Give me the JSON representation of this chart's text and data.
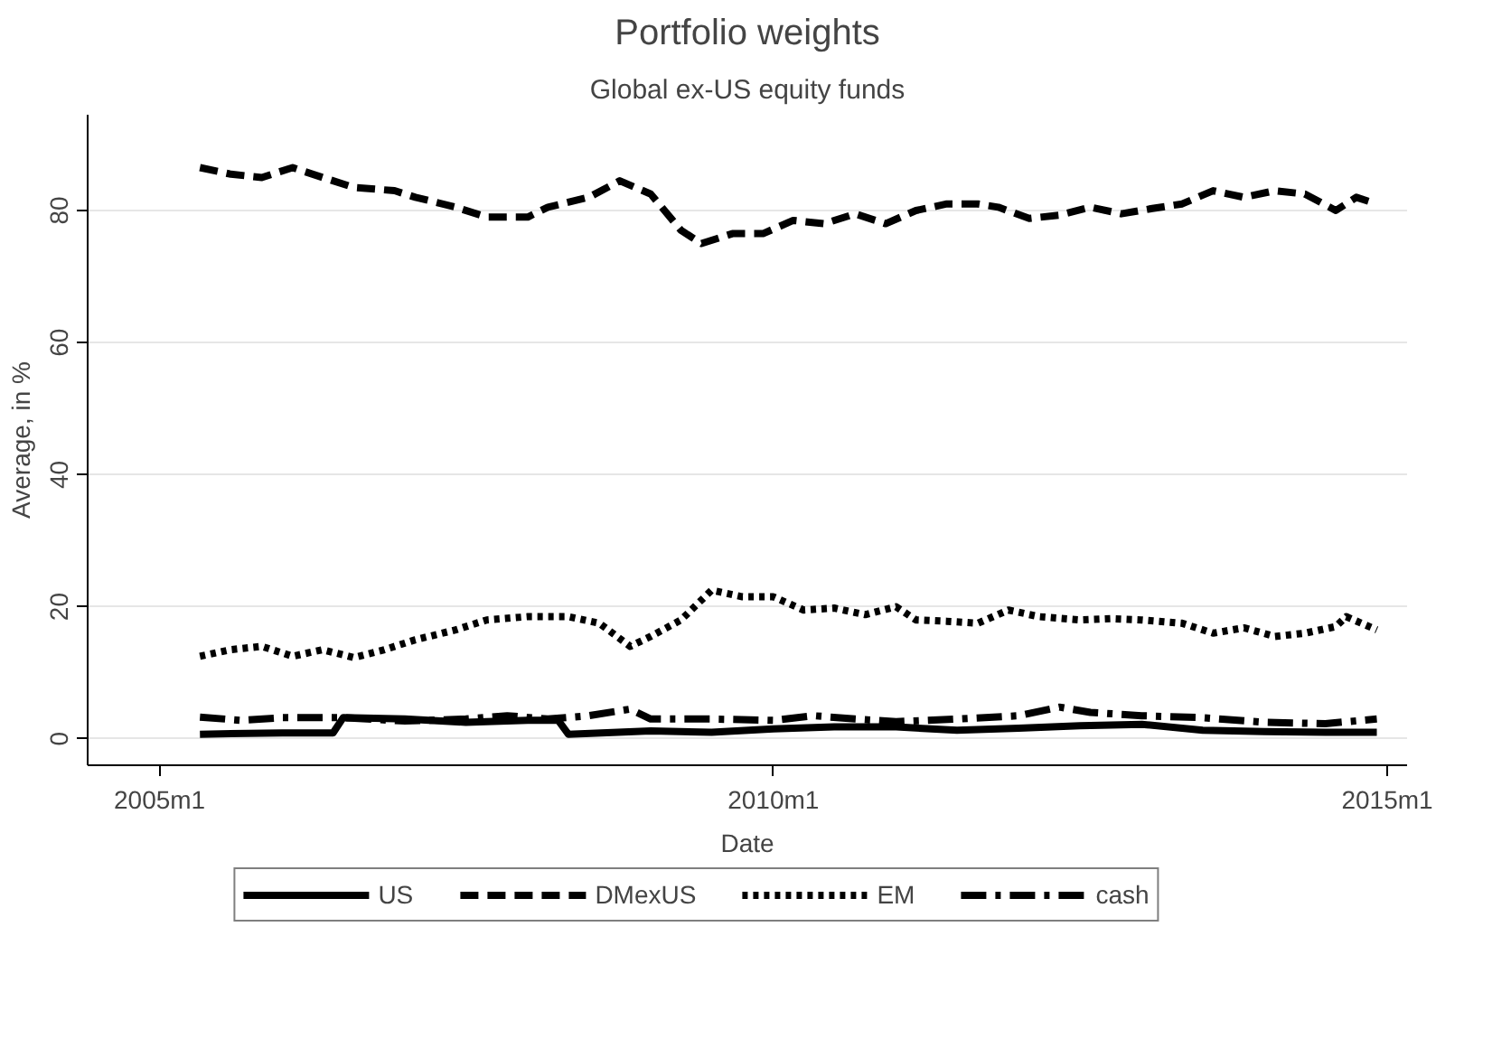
{
  "chart_data": {
    "type": "line",
    "title": "Portfolio weights",
    "subtitle": "Global ex-US equity funds",
    "xlabel": "Date",
    "ylabel": "Average, in %",
    "xlim": [
      "2004-06",
      "2015-03"
    ],
    "xticks": [
      {
        "value": "2005-01",
        "label": "2005m1"
      },
      {
        "value": "2010-01",
        "label": "2010m1"
      },
      {
        "value": "2015-01",
        "label": "2015m1"
      }
    ],
    "ylim": [
      -4,
      94.5
    ],
    "yticks": [
      0,
      20,
      40,
      60,
      80
    ],
    "grid": "y",
    "legend": "bottom",
    "marker": "none",
    "series": [
      {
        "name": "US",
        "color": "#000000",
        "line_style": "solid",
        "x": [
          "2005-05",
          "2006-01",
          "2006-06",
          "2006-07",
          "2007-01",
          "2007-07",
          "2008-01",
          "2008-04",
          "2008-05",
          "2009-01",
          "2009-07",
          "2010-01",
          "2010-07",
          "2011-01",
          "2011-07",
          "2012-01",
          "2012-07",
          "2013-01",
          "2013-07",
          "2014-01",
          "2014-07",
          "2014-12"
        ],
        "values": [
          0.7,
          0.9,
          0.9,
          3.2,
          3.0,
          2.5,
          2.8,
          2.8,
          0.7,
          1.2,
          1.0,
          1.5,
          1.8,
          1.8,
          1.3,
          1.6,
          2.0,
          2.2,
          1.3,
          1.1,
          1.0,
          1.0
        ]
      },
      {
        "name": "DMexUS",
        "color": "#000000",
        "line_style": "dashed",
        "x": [
          "2005-05",
          "2005-08",
          "2005-11",
          "2006-02",
          "2006-05",
          "2006-08",
          "2006-12",
          "2007-02",
          "2007-06",
          "2007-09",
          "2008-01",
          "2008-03",
          "2008-07",
          "2008-10",
          "2009-01",
          "2009-04",
          "2009-06",
          "2009-09",
          "2009-12",
          "2010-03",
          "2010-06",
          "2010-09",
          "2010-12",
          "2011-03",
          "2011-06",
          "2011-09",
          "2011-11",
          "2012-02",
          "2012-05",
          "2012-08",
          "2012-11",
          "2013-02",
          "2013-05",
          "2013-08",
          "2013-11",
          "2014-02",
          "2014-05",
          "2014-08",
          "2014-10",
          "2014-12"
        ],
        "values": [
          86.5,
          85.5,
          85,
          86.5,
          85,
          83.5,
          83,
          82,
          80.5,
          79,
          79,
          80.5,
          82,
          84.5,
          82.5,
          77,
          75,
          76.5,
          76.5,
          78.5,
          78,
          79.5,
          78,
          80,
          81,
          81,
          80.5,
          78.8,
          79.3,
          80.5,
          79.5,
          80.3,
          81,
          83,
          82,
          83,
          82.5,
          80,
          82,
          81
        ]
      },
      {
        "name": "EM",
        "color": "#000000",
        "line_style": "dotted",
        "x": [
          "2005-05",
          "2005-08",
          "2005-11",
          "2006-02",
          "2006-05",
          "2006-08",
          "2006-11",
          "2007-02",
          "2007-06",
          "2007-09",
          "2008-01",
          "2008-05",
          "2008-08",
          "2008-11",
          "2009-01",
          "2009-04",
          "2009-07",
          "2009-10",
          "2010-01",
          "2010-04",
          "2010-07",
          "2010-10",
          "2011-01",
          "2011-03",
          "2011-06",
          "2011-09",
          "2011-12",
          "2012-03",
          "2012-07",
          "2012-10",
          "2013-01",
          "2013-05",
          "2013-08",
          "2013-11",
          "2014-02",
          "2014-05",
          "2014-08",
          "2014-09",
          "2014-12"
        ],
        "values": [
          12.5,
          13.5,
          14,
          12.5,
          13.5,
          12.3,
          13.5,
          15,
          16.5,
          18,
          18.5,
          18.5,
          17.5,
          14,
          15.5,
          18,
          22.5,
          21.5,
          21.5,
          19.5,
          19.8,
          18.8,
          20,
          18,
          17.8,
          17.5,
          19.5,
          18.5,
          18,
          18.2,
          18,
          17.5,
          16,
          16.8,
          15.5,
          16,
          17,
          18.5,
          16.5
        ]
      },
      {
        "name": "cash",
        "color": "#000000",
        "line_style": "dashdot",
        "x": [
          "2005-05",
          "2005-09",
          "2006-01",
          "2006-07",
          "2007-01",
          "2007-07",
          "2007-11",
          "2008-03",
          "2008-07",
          "2008-11",
          "2009-01",
          "2009-07",
          "2010-01",
          "2010-05",
          "2010-09",
          "2011-01",
          "2011-07",
          "2012-01",
          "2012-05",
          "2012-08",
          "2013-01",
          "2013-07",
          "2014-01",
          "2014-07",
          "2014-12"
        ],
        "values": [
          3.3,
          2.8,
          3.2,
          3.2,
          2.7,
          3.0,
          3.5,
          3.0,
          3.5,
          4.5,
          3.0,
          3.0,
          2.8,
          3.5,
          3.0,
          2.6,
          3.0,
          3.5,
          4.8,
          4.0,
          3.5,
          3.2,
          2.5,
          2.3,
          3.0
        ]
      }
    ]
  }
}
